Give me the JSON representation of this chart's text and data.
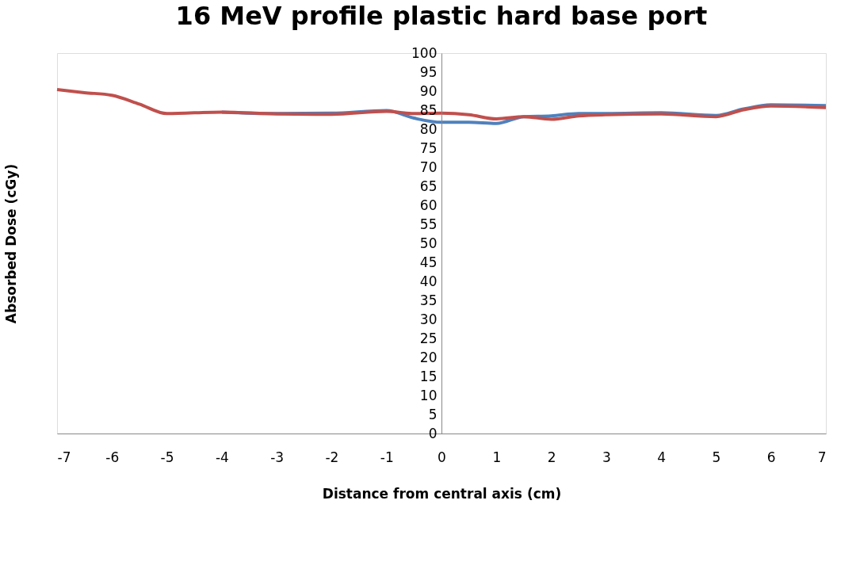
{
  "chart_data": {
    "type": "line",
    "title": "16 MeV profile plastic hard base port",
    "xlabel": "Distance from central axis (cm)",
    "ylabel": "Absorbed Dose (cGy)",
    "x": [
      -7,
      -6.5,
      -6,
      -5.5,
      -5,
      -4,
      -3,
      -2,
      -1,
      -0.5,
      0,
      0.5,
      1,
      1.5,
      2,
      2.5,
      3,
      4,
      5,
      5.5,
      6,
      7
    ],
    "series": [
      {
        "color": "#4f81bd",
        "values": [
          null,
          null,
          null,
          null,
          null,
          84.5,
          84.1,
          84.2,
          84.9,
          82.9,
          81.8,
          81.8,
          81.5,
          83.3,
          83.5,
          84.1,
          84.1,
          84.3,
          83.6,
          85.3,
          86.4,
          86.2
        ]
      },
      {
        "color": "#c0504d",
        "values": [
          90.4,
          89.6,
          88.9,
          86.6,
          84.1,
          84.5,
          84.0,
          83.9,
          84.7,
          84.1,
          84.2,
          83.8,
          82.7,
          83.3,
          82.6,
          83.5,
          83.8,
          84.0,
          83.3,
          85.1,
          86.1,
          85.7
        ]
      }
    ],
    "xlim": [
      -7,
      7
    ],
    "xticks": [
      -7,
      -6,
      -5,
      -4,
      -3,
      -2,
      -1,
      0,
      1,
      2,
      3,
      4,
      5,
      6,
      7
    ],
    "ylim": [
      0,
      100
    ],
    "yticks": [
      0,
      5,
      10,
      15,
      20,
      25,
      30,
      35,
      40,
      45,
      50,
      55,
      60,
      65,
      70,
      75,
      80,
      85,
      90,
      95,
      100
    ],
    "grid": false,
    "legend": false
  }
}
